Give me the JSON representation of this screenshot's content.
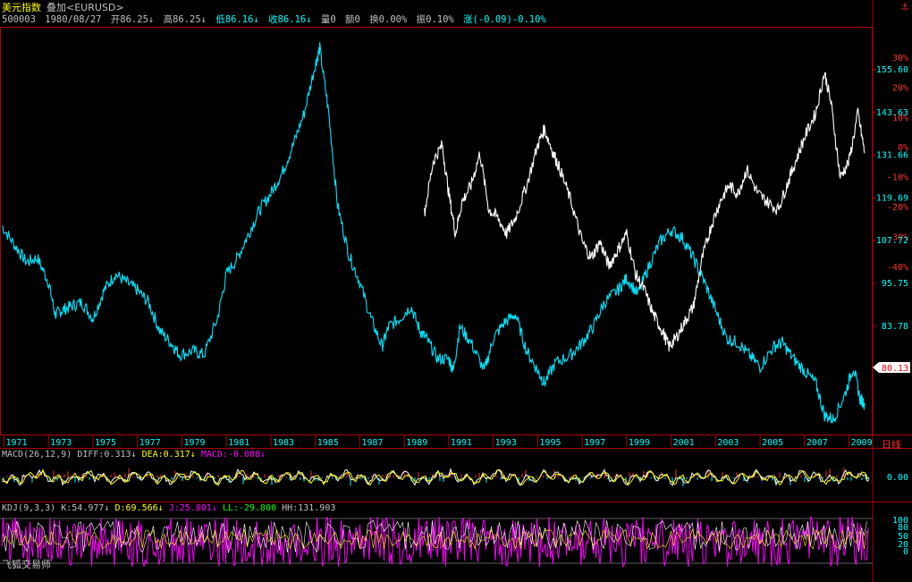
{
  "header": {
    "instrument": "美元指数",
    "overlay": "叠加<EURUSD>",
    "code": "500003",
    "date": "1980/08/27",
    "open": "开86.25↓",
    "high": "高86.25↓",
    "low": "低86.16↓",
    "close": "收86.16↓",
    "volume": "量0",
    "amount": "额0",
    "turnover": "换0.00%",
    "amplitude": "振0.10%",
    "change": "涨(-0.09)-0.10%"
  },
  "right_axis": {
    "percent_ticks": [
      "30%",
      "20%",
      "10%",
      "0%",
      "-10%",
      "-20%",
      "-30%",
      "-40%"
    ],
    "price_ticks": [
      "155.60",
      "143.63",
      "131.66",
      "119.69",
      "107.72",
      "95.75",
      "83.78"
    ],
    "current_price": "80.13",
    "period_label": "日线"
  },
  "x_axis": {
    "years": [
      "1971",
      "1973",
      "1975",
      "1977",
      "1979",
      "1981",
      "1983",
      "1985",
      "1987",
      "1989",
      "1991",
      "1993",
      "1995",
      "1997",
      "1999",
      "2001",
      "2003",
      "2005",
      "2007",
      "2009"
    ]
  },
  "macd": {
    "label": "MACD(26,12,9)",
    "diff": "DIFF:0.313↓",
    "dea": "DEA:0.317↓",
    "macd": "MACD:-0.008↓",
    "zero_tick": "0.00"
  },
  "kdj": {
    "label": "KDJ(9,3,3)",
    "k": "K:54.977↓",
    "d": "D:69.566↓",
    "j": "J:25.801↓",
    "ll": "LL:-29.800",
    "hh": "HH:131.903",
    "ticks": [
      "100",
      "80",
      "50",
      "20",
      "0"
    ]
  },
  "watermark": "飞狐交易师",
  "colors": {
    "usd_index_line": "#00e5ff",
    "eurusd_line": "#ffffff",
    "grid_red": "#b00000",
    "macd_diff": "#ffffff",
    "macd_dea": "#ffff00",
    "kdj_j": "#ff00ff",
    "kdj_k": "#ffffff",
    "kdj_d": "#ffff00"
  },
  "chart_data": {
    "type": "line",
    "title": "美元指数",
    "series": [
      {
        "name": "美元指数",
        "x": [
          1970.9,
          1971.5,
          1972.0,
          1972.5,
          1973.0,
          1973.3,
          1973.6,
          1974.0,
          1974.5,
          1975.0,
          1975.5,
          1976.0,
          1976.5,
          1977.0,
          1977.5,
          1978.0,
          1978.5,
          1978.9,
          1979.5,
          1980.0,
          1980.6,
          1981.0,
          1981.5,
          1982.0,
          1982.5,
          1983.0,
          1983.5,
          1984.0,
          1984.5,
          1985.0,
          1985.2,
          1985.6,
          1986.0,
          1986.5,
          1987.0,
          1987.5,
          1988.0,
          1988.3,
          1988.8,
          1989.3,
          1989.7,
          1990.0,
          1990.5,
          1991.0,
          1991.2,
          1991.5,
          1992.0,
          1992.6,
          1993.0,
          1993.5,
          1994.0,
          1994.5,
          1995.0,
          1995.3,
          1995.8,
          1996.5,
          1997.0,
          1997.5,
          1998.0,
          1998.6,
          1999.0,
          1999.5,
          2000.0,
          2000.5,
          2001.0,
          2001.5,
          2002.0,
          2002.5,
          2003.0,
          2003.5,
          2004.0,
          2004.5,
          2005.0,
          2005.6,
          2006.0,
          2006.5,
          2007.0,
          2007.5,
          2007.9,
          2008.3,
          2008.8,
          2009.2,
          2009.5,
          2009.7
        ],
        "y": [
          120,
          115,
          111,
          112,
          106,
          98,
          99,
          100,
          101,
          97,
          104,
          108,
          106,
          104,
          101,
          94,
          91,
          88,
          89,
          88,
          97,
          108,
          112,
          118,
          124,
          128,
          133,
          140,
          148,
          160,
          164,
          148,
          125,
          113,
          106,
          97,
          90,
          95,
          97,
          100,
          94,
          92,
          87,
          87,
          84,
          95,
          91,
          84,
          92,
          96,
          98,
          89,
          84,
          81,
          86,
          88,
          91,
          95,
          101,
          104,
          107,
          103,
          110,
          116,
          119,
          117,
          112,
          106,
          99,
          92,
          91,
          88,
          85,
          90,
          91,
          87,
          84,
          81,
          73,
          72,
          78,
          85,
          77,
          76
        ]
      },
      {
        "name": "EURUSD",
        "x": [
          1989.9,
          1990.3,
          1990.7,
          1991.0,
          1991.3,
          1991.6,
          1992.0,
          1992.4,
          1992.8,
          1993.2,
          1993.6,
          1994.0,
          1994.5,
          1995.0,
          1995.3,
          1995.7,
          1996.0,
          1996.5,
          1997.0,
          1997.4,
          1997.8,
          1998.2,
          1998.6,
          1999.0,
          1999.4,
          1999.8,
          2000.2,
          2000.6,
          2000.9,
          2001.2,
          2001.6,
          2002.0,
          2002.4,
          2002.8,
          2003.2,
          2003.6,
          2004.0,
          2004.4,
          2004.9,
          2005.3,
          2005.8,
          2006.2,
          2006.6,
          2007.0,
          2007.5,
          2007.9,
          2008.2,
          2008.6,
          2009.0,
          2009.4,
          2009.7
        ],
        "y": [
          123,
          136,
          140,
          128,
          118,
          126,
          130,
          138,
          124,
          122,
          118,
          122,
          130,
          140,
          144,
          138,
          134,
          126,
          116,
          112,
          116,
          110,
          114,
          118,
          108,
          104,
          98,
          94,
          90,
          92,
          96,
          100,
          112,
          120,
          126,
          130,
          128,
          134,
          128,
          126,
          124,
          130,
          136,
          142,
          148,
          158,
          150,
          132,
          136,
          148,
          138
        ]
      }
    ],
    "xlabel": "",
    "ylabel": "",
    "xlim": [
      1970.9,
      2009.9
    ],
    "ylim": [
      70,
      168
    ],
    "grid": false,
    "legend": "none"
  }
}
